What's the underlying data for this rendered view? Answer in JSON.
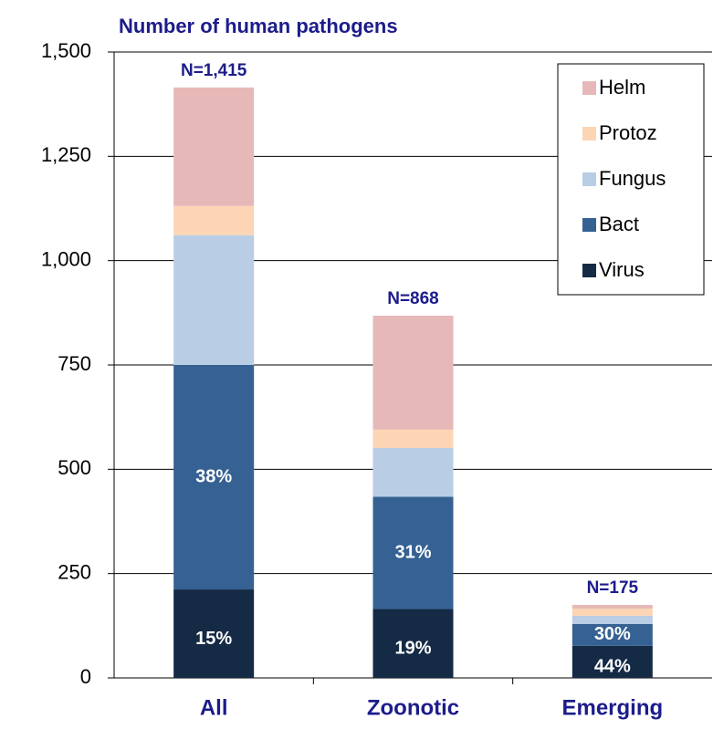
{
  "chart_data": {
    "type": "stacked_bar",
    "title": "Number of human pathogens",
    "categories": [
      "All",
      "Zoonotic",
      "Emerging"
    ],
    "series": [
      {
        "name": "Virus",
        "color": "#152a45",
        "values": [
          212,
          165,
          77
        ],
        "percent_labels": [
          "15%",
          "19%",
          "44%"
        ]
      },
      {
        "name": "Bact",
        "color": "#366193",
        "values": [
          538,
          269,
          52
        ],
        "percent_labels": [
          "38%",
          "31%",
          "30%"
        ]
      },
      {
        "name": "Fungus",
        "color": "#b9cde5",
        "values": [
          311,
          117,
          20
        ]
      },
      {
        "name": "Protoz",
        "color": "#fcd5b5",
        "values": [
          70,
          44,
          17
        ]
      },
      {
        "name": "Helm",
        "color": "#e6b9b8",
        "values": [
          284,
          273,
          9
        ]
      }
    ],
    "total_labels": [
      "N=1,415",
      "N=868",
      "N=175"
    ],
    "ylim": [
      0,
      1500
    ],
    "yticks": [
      0,
      250,
      500,
      750,
      {
        "value": 1000,
        "label": "1,000"
      },
      {
        "value": 1250,
        "label": "1,250"
      },
      {
        "value": 1500,
        "label": "1,500"
      }
    ],
    "grid": true,
    "legend": "upper right"
  }
}
